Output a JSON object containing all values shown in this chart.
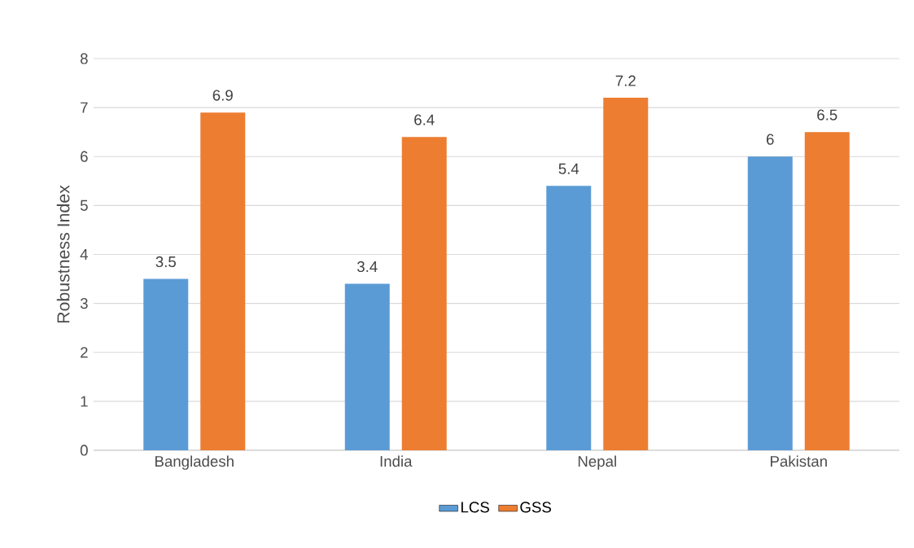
{
  "chart_data": {
    "type": "bar",
    "ylabel": "Robustness Index",
    "categories": [
      "Bangladesh",
      "India",
      "Nepal",
      "Pakistan"
    ],
    "series": [
      {
        "name": "LCS",
        "color": "#5b9bd5",
        "values": [
          3.5,
          3.4,
          5.4,
          6
        ]
      },
      {
        "name": "GSS",
        "color": "#ed7d31",
        "values": [
          6.9,
          6.4,
          7.2,
          6.5
        ]
      }
    ],
    "ylim": [
      0,
      8
    ],
    "yticks": [
      0,
      1,
      2,
      3,
      4,
      5,
      6,
      7,
      8
    ],
    "grid": "y",
    "legend": "bottom",
    "data_labels": true
  }
}
